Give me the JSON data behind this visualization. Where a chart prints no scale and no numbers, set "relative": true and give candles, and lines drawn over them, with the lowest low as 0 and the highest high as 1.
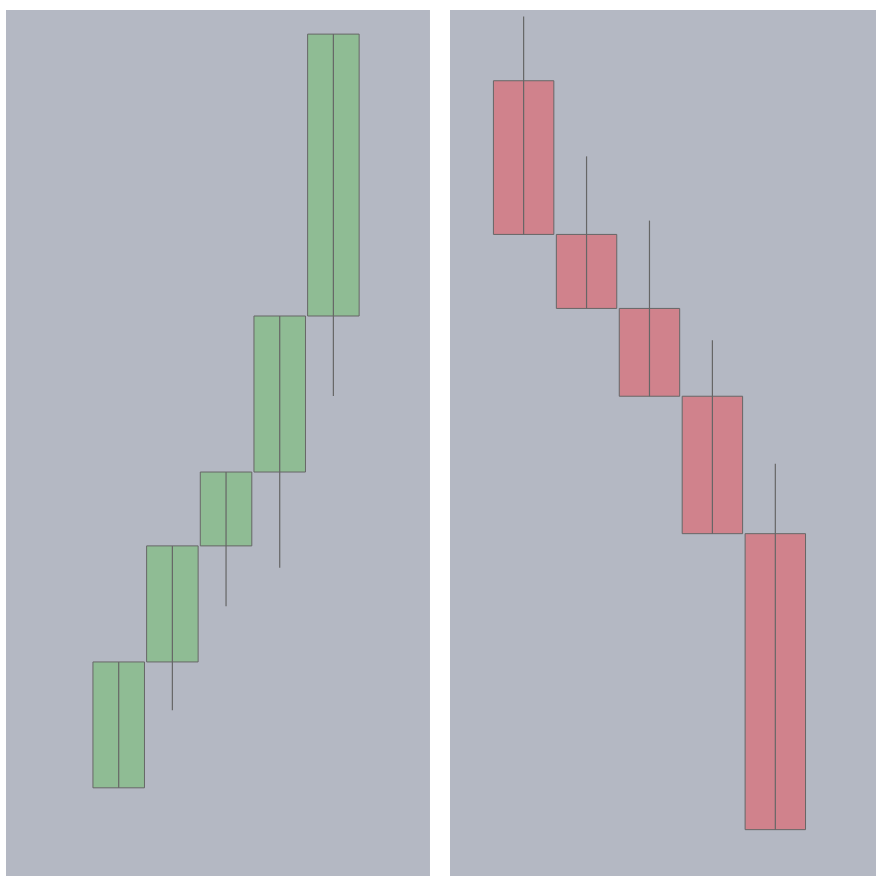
{
  "chart_data": [
    {
      "type": "candlestick",
      "relative": true,
      "categories": [
        null,
        null,
        null,
        null,
        null
      ],
      "ohlc": [
        [
          0,
          0.167,
          0,
          0.167
        ],
        [
          0.167,
          0.321,
          0.103,
          0.321
        ],
        [
          0.321,
          0.419,
          0.241,
          0.419
        ],
        [
          0.419,
          0.626,
          0.292,
          0.626
        ],
        [
          0.626,
          1,
          0.52,
          1
        ]
      ],
      "colors": [
        "#8fbc94",
        "#8fbc94",
        "#8fbc94",
        "#8fbc94",
        "#8fbc94"
      ]
    },
    {
      "type": "candlestick",
      "relative": true,
      "categories": [
        null,
        null,
        null,
        null,
        null
      ],
      "ohlc": [
        [
          0.921,
          1,
          0.732,
          0.732
        ],
        [
          0.732,
          0.828,
          0.641,
          0.641
        ],
        [
          0.641,
          0.749,
          0.533,
          0.533
        ],
        [
          0.533,
          0.602,
          0.364,
          0.364
        ],
        [
          0.364,
          0.45,
          0,
          0
        ]
      ],
      "colors": [
        "#d0828c",
        "#d0828c",
        "#d0828c",
        "#d0828c",
        "#d0828c"
      ]
    }
  ]
}
